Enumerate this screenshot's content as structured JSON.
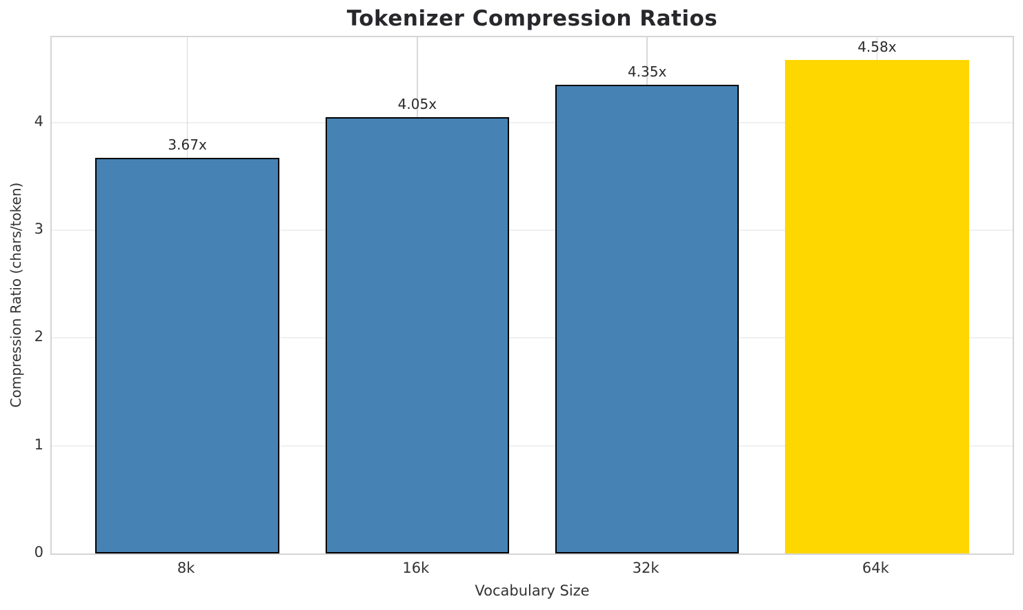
{
  "chart_data": {
    "type": "bar",
    "title": "Tokenizer Compression Ratios",
    "xlabel": "Vocabulary Size",
    "ylabel": "Compression Ratio (chars/token)",
    "categories": [
      "8k",
      "16k",
      "32k",
      "64k"
    ],
    "values": [
      3.67,
      4.05,
      4.35,
      4.58
    ],
    "value_labels": [
      "3.67x",
      "4.05x",
      "4.35x",
      "4.58x"
    ],
    "bar_colors": [
      "#4682B4",
      "#4682B4",
      "#4682B4",
      "#FFD700"
    ],
    "bar_edge_colors": [
      "#000000",
      "#000000",
      "#000000",
      "#FFD700"
    ],
    "yticks": [
      0,
      1,
      2,
      3,
      4
    ],
    "ylim": [
      0,
      4.79
    ],
    "grid": true,
    "legend_position": "none",
    "colors": {
      "title_text": "#28282c",
      "tick_text": "#333333",
      "axis_label_text": "#333333",
      "value_label_text": "#2a2a2a",
      "grid_horizontal": "#f0f0f0",
      "grid_vertical": "#d9d9dd",
      "spine": "#d5d5d5",
      "background": "#ffffff"
    }
  }
}
